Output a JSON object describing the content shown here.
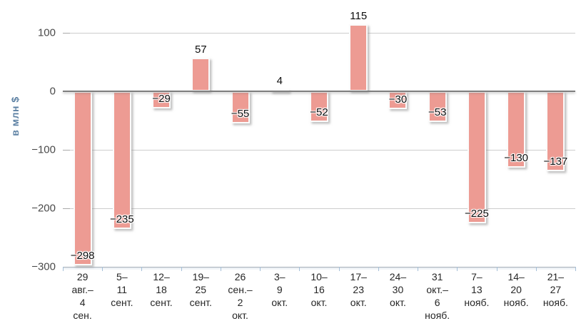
{
  "chart_data": {
    "type": "bar",
    "title": "",
    "xlabel": "",
    "ylabel": "в млн $",
    "legend": "none",
    "grid": true,
    "ylim": [
      -300,
      140
    ],
    "y_ticks": [
      100,
      0,
      -100,
      -200,
      -300
    ],
    "y_tick_labels": [
      "100",
      "0",
      "−100",
      "−200",
      "−300"
    ],
    "categories": [
      "29 авг.–4 сен.",
      "5–11 сент.",
      "12–18 сент.",
      "19–25 сент.",
      "26 сен.–2 окт.",
      "3–9 окт.",
      "10–16 окт.",
      "17–23 окт.",
      "24–30 окт.",
      "31 окт.–6 нояб.",
      "7–13 нояб.",
      "14–20 нояб.",
      "21–27 нояб."
    ],
    "category_lines": [
      [
        "29",
        "авг.–",
        "4",
        "сен."
      ],
      [
        "5–",
        "11",
        "сент."
      ],
      [
        "12–",
        "18",
        "сент."
      ],
      [
        "19–",
        "25",
        "сент."
      ],
      [
        "26",
        "сен.–",
        "2",
        "окт."
      ],
      [
        "3–",
        "9",
        "окт."
      ],
      [
        "10–",
        "16",
        "окт."
      ],
      [
        "17–",
        "23",
        "окт."
      ],
      [
        "24–",
        "30",
        "окт."
      ],
      [
        "31",
        "окт.–",
        "6",
        "нояб."
      ],
      [
        "7–",
        "13",
        "нояб."
      ],
      [
        "14–",
        "20",
        "нояб."
      ],
      [
        "21–",
        "27",
        "нояб."
      ]
    ],
    "values": [
      -298,
      -235,
      -29,
      57,
      -55,
      4,
      -52,
      115,
      -30,
      -53,
      -225,
      -130,
      -137
    ],
    "data_labels": [
      "−298",
      "−235",
      "−29",
      "57",
      "−55",
      "4",
      "−52",
      "115",
      "−30",
      "−53",
      "−225",
      "−130",
      "−137"
    ],
    "colors": {
      "bar_fill": "#ed9b93",
      "bar_border": "#fbfbfb",
      "gridline": "#cdcdcd",
      "zero_line": "#6e6e6e",
      "x_axis_line": "#a9b2ba",
      "x_tick": "#a6c0d8",
      "y_axis_title": "#5e82a4",
      "y_tick_label": "#4a4a4a",
      "x_tick_label": "#262626",
      "data_label": "#0d0d0d"
    }
  }
}
